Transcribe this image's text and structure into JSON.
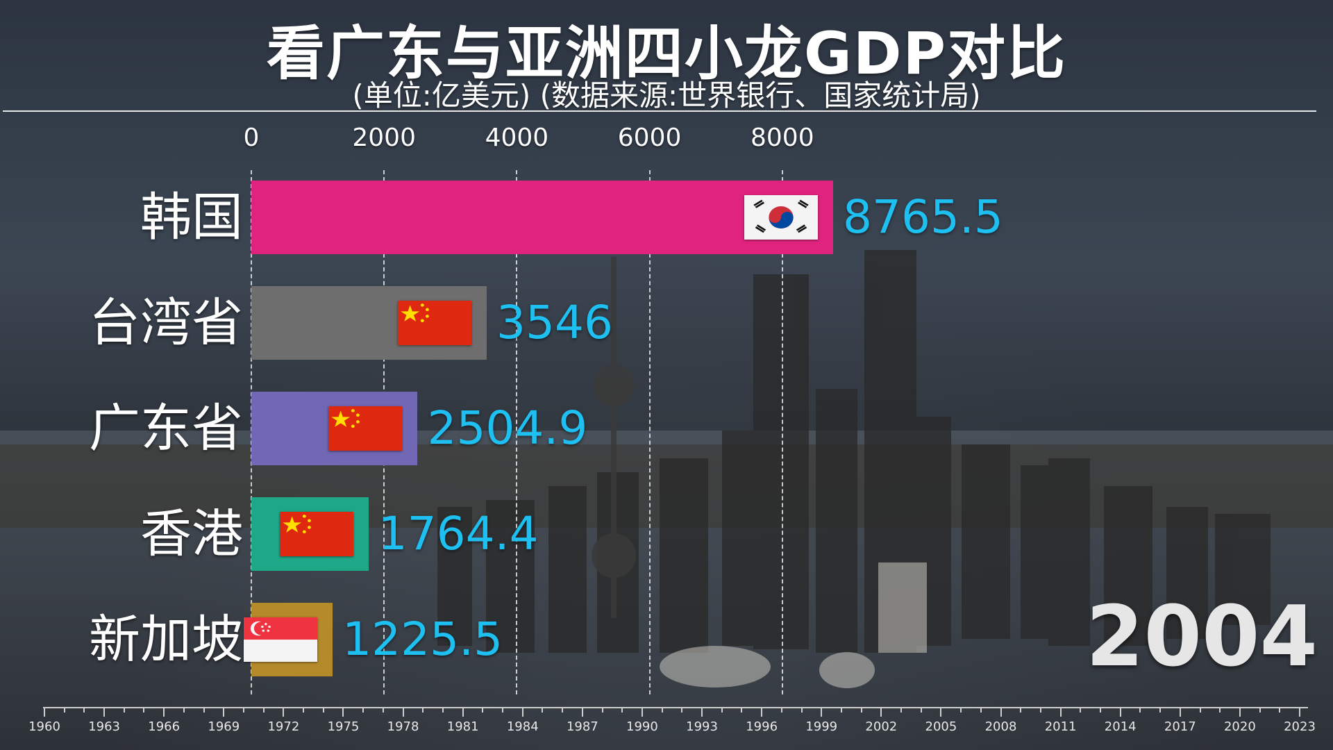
{
  "title": "看广东与亚洲四小龙GDP对比",
  "subtitle": "(单位:亿美元) (数据来源:世界银行、国家统计局)",
  "year": "2004",
  "chart_data": {
    "type": "bar",
    "orientation": "horizontal",
    "categories": [
      "韩国",
      "台湾省",
      "广东省",
      "香港",
      "新加坡"
    ],
    "values": [
      8765.5,
      3546,
      2504.9,
      1764.4,
      1225.5
    ],
    "value_labels": [
      "8765.5",
      "3546",
      "2504.9",
      "1764.4",
      "1225.5"
    ],
    "bar_colors": [
      "#e0237f",
      "#6e6e6e",
      "#7068b4",
      "#1fa888",
      "#b48a2a"
    ],
    "flags": [
      "korea-flag-icon",
      "china-flag-icon",
      "china-flag-icon",
      "china-flag-icon",
      "singapore-flag-icon"
    ],
    "x_ticks": [
      "0",
      "2000",
      "4000",
      "6000",
      "8000"
    ],
    "xlim": [
      0,
      9200
    ],
    "grid": true,
    "value_color": "#1ec0f2"
  },
  "timeline": {
    "labels": [
      "1960",
      "1963",
      "1966",
      "1969",
      "1972",
      "1975",
      "1978",
      "1981",
      "1984",
      "1987",
      "1990",
      "1993",
      "1996",
      "1999",
      "2002",
      "2005",
      "2008",
      "2011",
      "2014",
      "2017",
      "2020",
      "2023"
    ],
    "start": 1960,
    "end": 2023,
    "current": 2004
  }
}
